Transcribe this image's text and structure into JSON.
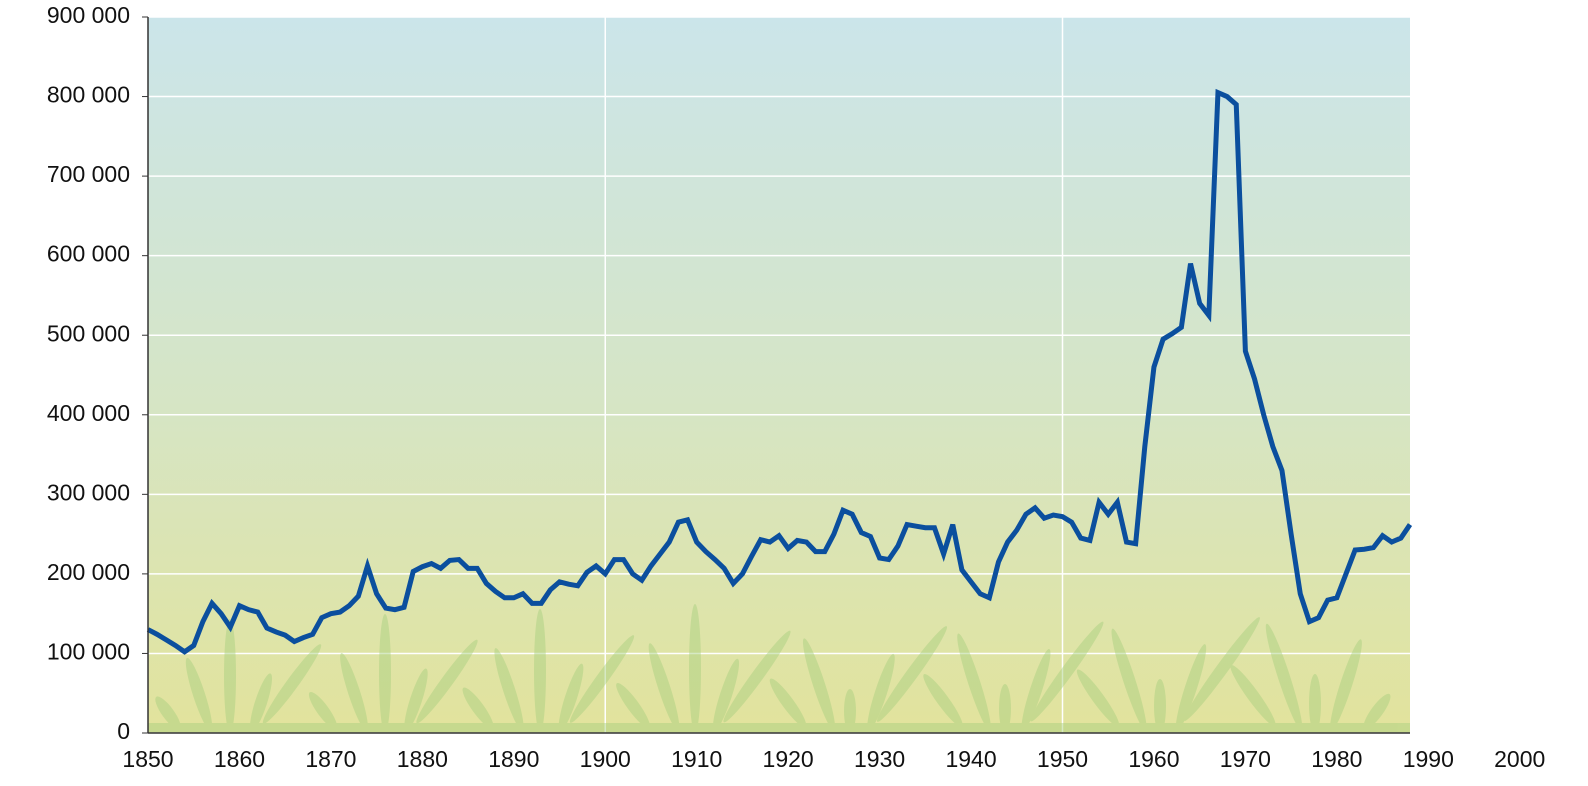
{
  "chart_data": {
    "type": "line",
    "x": [
      1850,
      1851,
      1852,
      1853,
      1854,
      1855,
      1856,
      1857,
      1858,
      1859,
      1860,
      1861,
      1862,
      1863,
      1864,
      1865,
      1866,
      1867,
      1868,
      1869,
      1870,
      1871,
      1872,
      1873,
      1874,
      1875,
      1876,
      1877,
      1878,
      1879,
      1880,
      1881,
      1882,
      1883,
      1884,
      1885,
      1886,
      1887,
      1888,
      1889,
      1890,
      1891,
      1892,
      1893,
      1894,
      1895,
      1896,
      1897,
      1898,
      1899,
      1900,
      1901,
      1902,
      1903,
      1904,
      1905,
      1906,
      1907,
      1908,
      1909,
      1910,
      1911,
      1912,
      1913,
      1914,
      1915,
      1916,
      1917,
      1918,
      1919,
      1920,
      1921,
      1922,
      1923,
      1924,
      1925,
      1926,
      1927,
      1928,
      1929,
      1930,
      1931,
      1932,
      1933,
      1934,
      1935,
      1936,
      1937,
      1938,
      1939,
      1940,
      1941,
      1942,
      1943,
      1944,
      1945,
      1946,
      1947,
      1948,
      1949,
      1950,
      1951,
      1952,
      1953,
      1954,
      1955,
      1956,
      1957,
      1958,
      1959,
      1960,
      1961,
      1962,
      1963,
      1964,
      1965,
      1966,
      1967,
      1968,
      1969,
      1970,
      1971,
      1972,
      1973,
      1974,
      1975,
      1976,
      1977,
      1978,
      1979,
      1980,
      1981,
      1982,
      1983,
      1984,
      1985,
      1986,
      1987,
      1988
    ],
    "series": [
      {
        "color": "#0b4f9e",
        "values": [
          130000,
          124000,
          117000,
          110000,
          102000,
          110000,
          140000,
          163000,
          150000,
          133000,
          160000,
          155000,
          152000,
          132000,
          127000,
          123000,
          115000,
          120000,
          124000,
          145000,
          150000,
          152000,
          160000,
          172000,
          210000,
          175000,
          157000,
          155000,
          158000,
          203000,
          209000,
          213000,
          207000,
          217000,
          218000,
          207000,
          207000,
          188000,
          178000,
          170000,
          170000,
          175000,
          163000,
          163000,
          180000,
          190000,
          187000,
          185000,
          202000,
          210000,
          200000,
          218000,
          218000,
          200000,
          192000,
          210000,
          225000,
          240000,
          265000,
          268000,
          240000,
          228000,
          218000,
          207000,
          188000,
          200000,
          222000,
          243000,
          240000,
          248000,
          232000,
          242000,
          240000,
          228000,
          228000,
          250000,
          280000,
          275000,
          252000,
          247000,
          220000,
          218000,
          235000,
          262000,
          260000,
          258000,
          258000,
          225000,
          262000,
          205000,
          190000,
          175000,
          170000,
          215000,
          240000,
          255000,
          275000,
          283000,
          270000,
          274000,
          272000,
          265000,
          245000,
          242000,
          290000,
          275000,
          290000,
          240000,
          238000,
          360000,
          460000,
          495000,
          502000,
          510000,
          590000,
          540000,
          525000,
          805000,
          800000,
          790000,
          480000,
          445000,
          400000,
          360000,
          330000,
          250000,
          175000,
          140000,
          145000,
          167000,
          170000,
          200000,
          230000,
          231000,
          233000,
          248000,
          240000,
          245000,
          262000
        ]
      }
    ],
    "xlim": [
      1850,
      1988
    ],
    "xticks": [
      1850,
      1860,
      1870,
      1880,
      1890,
      1900,
      1910,
      1920,
      1930,
      1940,
      1950,
      1960,
      1970,
      1980,
      1990,
      2000
    ],
    "xgrid": [
      1900,
      1950
    ],
    "ylim": [
      0,
      900000
    ],
    "yticks": [
      0,
      {
        "value": 100000,
        "label": "100 000"
      },
      {
        "value": 200000,
        "label": "200 000"
      },
      {
        "value": 300000,
        "label": "300 000"
      },
      {
        "value": 400000,
        "label": "400 000"
      },
      {
        "value": 500000,
        "label": "500 000"
      },
      {
        "value": 600000,
        "label": "600 000"
      },
      {
        "value": 700000,
        "label": "700 000"
      },
      {
        "value": 800000,
        "label": "800 000"
      },
      {
        "value": 900000,
        "label": "900 000"
      }
    ],
    "grid": true
  }
}
